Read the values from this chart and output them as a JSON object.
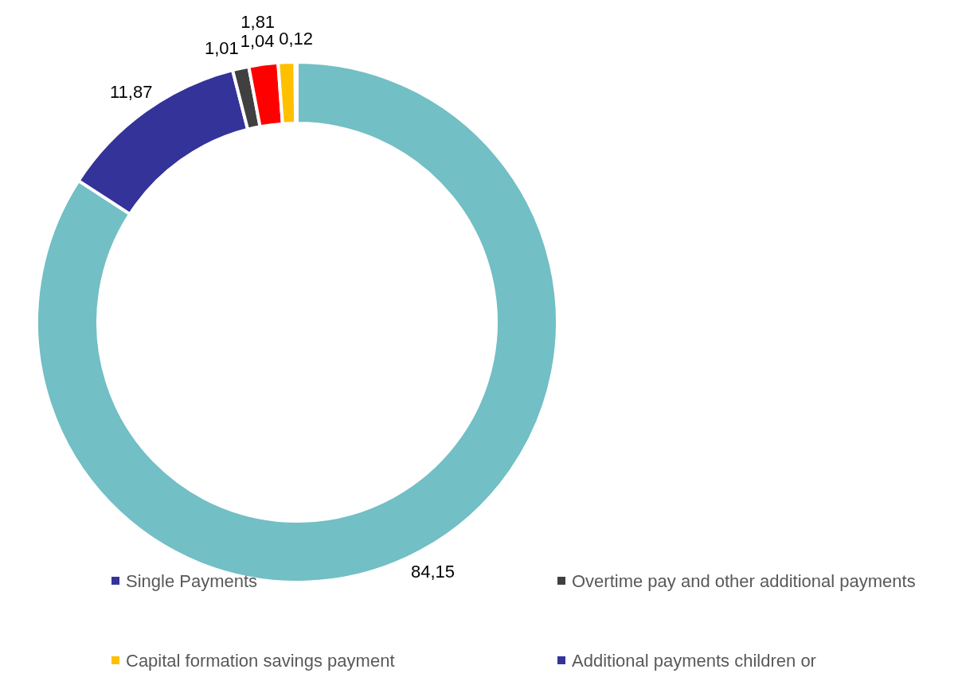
{
  "chart_data": {
    "type": "donut",
    "categories": [
      null,
      "Single Payments",
      "Overtime pay and other additional payments",
      null,
      "Capital formation savings payment",
      "Additional payments children or"
    ],
    "values": [
      84.15,
      11.87,
      1.01,
      1.81,
      1.04,
      0.12
    ],
    "colors": [
      "#72bfc5",
      "#333399",
      "#404040",
      "#ff0000",
      "#ffc000",
      "#333399"
    ],
    "value_labels": [
      "84,15",
      "11,87",
      "1,01",
      "1,81",
      "1,04",
      "0,12"
    ],
    "legend": "bottom"
  }
}
